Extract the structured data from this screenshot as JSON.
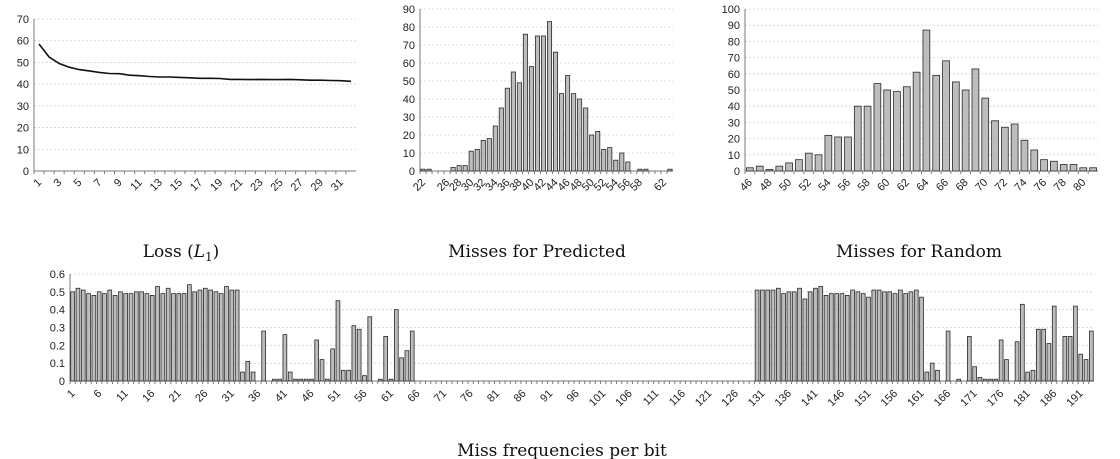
{
  "chart_data": [
    {
      "id": "loss",
      "type": "line",
      "caption": "Loss (",
      "caption_sym": "L",
      "caption_sub": "1",
      "caption_end": ")",
      "ylim": [
        0,
        70
      ],
      "ytick_step": 10,
      "x": [
        1,
        2,
        3,
        4,
        5,
        6,
        7,
        8,
        9,
        10,
        11,
        12,
        13,
        14,
        15,
        16,
        17,
        18,
        19,
        20,
        21,
        22,
        23,
        24,
        25,
        26,
        27,
        28,
        29,
        30,
        31,
        32
      ],
      "x_tick_labels": [
        "1",
        "3",
        "5",
        "7",
        "9",
        "11",
        "13",
        "15",
        "17",
        "19",
        "21",
        "23",
        "25",
        "27",
        "29",
        "31"
      ],
      "series": [
        {
          "values": [
            58.5,
            52.5,
            49.5,
            47.8,
            46.7,
            46.1,
            45.4,
            44.9,
            44.8,
            44.1,
            43.9,
            43.5,
            43.3,
            43.3,
            43.1,
            42.9,
            42.7,
            42.7,
            42.6,
            42.2,
            42.2,
            42.1,
            42.2,
            42.1,
            42.1,
            42.2,
            42.0,
            41.8,
            41.8,
            41.7,
            41.6,
            41.3
          ]
        }
      ]
    },
    {
      "id": "pred",
      "type": "bar",
      "caption": "Misses for Predicted",
      "ylim": [
        0,
        90
      ],
      "ytick_step": 10,
      "categories": [
        22,
        23,
        24,
        25,
        26,
        27,
        28,
        29,
        30,
        31,
        32,
        33,
        34,
        35,
        36,
        37,
        38,
        39,
        40,
        41,
        42,
        43,
        44,
        45,
        46,
        47,
        48,
        49,
        50,
        51,
        52,
        53,
        54,
        55,
        56,
        57,
        58,
        59,
        60,
        61,
        62,
        63
      ],
      "values": [
        1,
        1,
        0,
        0,
        0,
        2,
        3,
        3,
        11,
        12,
        17,
        18,
        25,
        35,
        46,
        55,
        49,
        76,
        58,
        75,
        75,
        83,
        66,
        43,
        53,
        43,
        40,
        35,
        20,
        22,
        12,
        13,
        6,
        10,
        5,
        0,
        1,
        1,
        0,
        0,
        0,
        1
      ],
      "x_tick_labels": [
        "22",
        "26",
        "28",
        "30",
        "32",
        "34",
        "36",
        "38",
        "40",
        "42",
        "44",
        "46",
        "48",
        "50",
        "52",
        "54",
        "56",
        "58",
        "62"
      ]
    },
    {
      "id": "rand",
      "type": "bar",
      "caption": "Misses for Random",
      "ylim": [
        0,
        100
      ],
      "ytick_step": 10,
      "categories": [
        46,
        47,
        48,
        49,
        50,
        51,
        52,
        53,
        54,
        55,
        56,
        57,
        58,
        59,
        60,
        61,
        62,
        63,
        64,
        65,
        66,
        67,
        68,
        69,
        70,
        71,
        72,
        73,
        74,
        75,
        76,
        77,
        78,
        79,
        80,
        81
      ],
      "values": [
        2,
        3,
        1,
        3,
        5,
        7,
        11,
        10,
        22,
        21,
        21,
        40,
        40,
        54,
        50,
        49,
        52,
        61,
        87,
        59,
        68,
        55,
        50,
        63,
        45,
        31,
        27,
        29,
        19,
        13,
        7,
        6,
        4,
        4,
        2,
        2
      ],
      "x_tick_labels": [
        "46",
        "48",
        "50",
        "52",
        "54",
        "56",
        "58",
        "60",
        "62",
        "64",
        "66",
        "68",
        "70",
        "72",
        "74",
        "76",
        "78",
        "80"
      ]
    },
    {
      "id": "bits",
      "type": "bar",
      "caption": "Miss frequencies per bit",
      "ylim": [
        0,
        0.6
      ],
      "ytick_step": 0.1,
      "ytick_labels": [
        "0",
        "0.1",
        "0.2",
        "0.3",
        "0.4",
        "0.5",
        "0.6"
      ],
      "num_bits": 193,
      "x_tick_labels": [
        "1",
        "6",
        "11",
        "16",
        "21",
        "26",
        "31",
        "36",
        "41",
        "46",
        "51",
        "56",
        "61",
        "66",
        "71",
        "76",
        "81",
        "86",
        "91",
        "96",
        "101",
        "106",
        "111",
        "116",
        "121",
        "126",
        "131",
        "136",
        "141",
        "146",
        "151",
        "156",
        "161",
        "166",
        "171",
        "176",
        "181",
        "186",
        "191"
      ],
      "values": [
        0.5,
        0.52,
        0.51,
        0.49,
        0.48,
        0.5,
        0.49,
        0.51,
        0.48,
        0.5,
        0.49,
        0.49,
        0.5,
        0.5,
        0.49,
        0.48,
        0.53,
        0.49,
        0.52,
        0.49,
        0.49,
        0.49,
        0.54,
        0.5,
        0.51,
        0.52,
        0.51,
        0.5,
        0.49,
        0.53,
        0.51,
        0.51,
        0.05,
        0.11,
        0.05,
        0.0,
        0.28,
        0.0,
        0.01,
        0.01,
        0.26,
        0.05,
        0.01,
        0.01,
        0.01,
        0.01,
        0.23,
        0.12,
        0.01,
        0.18,
        0.45,
        0.06,
        0.06,
        0.31,
        0.29,
        0.03,
        0.36,
        0.0,
        0.01,
        0.25,
        0.01,
        0.4,
        0.13,
        0.17,
        0.28,
        0,
        0,
        0,
        0,
        0,
        0,
        0,
        0,
        0,
        0,
        0,
        0,
        0,
        0,
        0,
        0,
        0,
        0,
        0,
        0,
        0,
        0,
        0,
        0,
        0,
        0,
        0,
        0,
        0,
        0,
        0,
        0,
        0,
        0,
        0,
        0,
        0,
        0,
        0,
        0,
        0,
        0,
        0,
        0,
        0,
        0,
        0,
        0,
        0,
        0,
        0,
        0,
        0,
        0,
        0,
        0,
        0,
        0,
        0,
        0,
        0,
        0,
        0,
        0,
        0.51,
        0.51,
        0.51,
        0.51,
        0.52,
        0.49,
        0.5,
        0.5,
        0.52,
        0.46,
        0.5,
        0.52,
        0.53,
        0.48,
        0.49,
        0.49,
        0.49,
        0.48,
        0.51,
        0.5,
        0.49,
        0.47,
        0.51,
        0.51,
        0.5,
        0.5,
        0.49,
        0.51,
        0.49,
        0.5,
        0.51,
        0.47,
        0.05,
        0.1,
        0.06,
        0.0,
        0.28,
        0.0,
        0.01,
        0.0,
        0.25,
        0.08,
        0.02,
        0.01,
        0.01,
        0.01,
        0.23,
        0.12,
        0.0,
        0.22,
        0.43,
        0.05,
        0.06,
        0.29,
        0.29,
        0.21,
        0.42,
        0.0,
        0.25,
        0.25,
        0.42,
        0.15,
        0.12,
        0.28
      ]
    }
  ]
}
